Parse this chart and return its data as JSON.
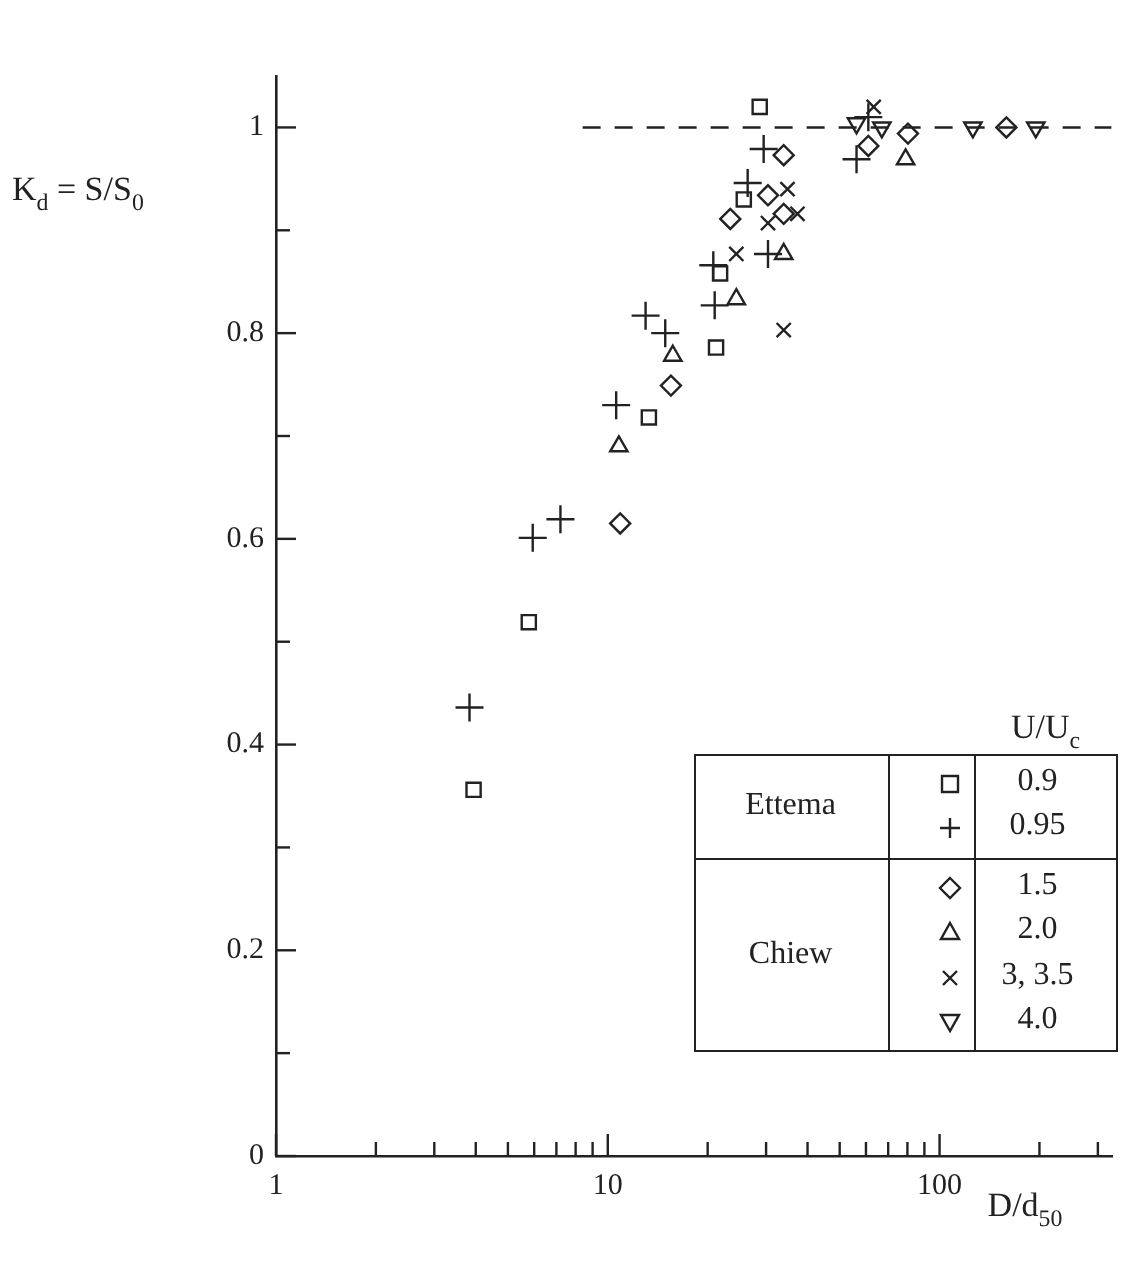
{
  "chart_data": {
    "type": "scatter",
    "xlabel": "D/d$_{50}$",
    "ylabel": "K$_{d}$ = S/S$_{0}$",
    "legend_title": "U/U$_{c}$",
    "legend": "bottom right",
    "log": "x",
    "grid": false,
    "annotations": [
      "Ettema",
      "Chiew"
    ],
    "xlim": [
      1,
      330
    ],
    "xticks": [
      1,
      {
        "value": 2,
        "label": null
      },
      {
        "value": 3,
        "label": null
      },
      {
        "value": 4,
        "label": null
      },
      {
        "value": 5,
        "label": null
      },
      {
        "value": 6,
        "label": null
      },
      {
        "value": 7,
        "label": null
      },
      {
        "value": 8,
        "label": null
      },
      {
        "value": 9,
        "label": null
      },
      10,
      {
        "value": 20,
        "label": null
      },
      {
        "value": 30,
        "label": null
      },
      {
        "value": 40,
        "label": null
      },
      {
        "value": 50,
        "label": null
      },
      {
        "value": 60,
        "label": null
      },
      {
        "value": 70,
        "label": null
      },
      {
        "value": 80,
        "label": null
      },
      {
        "value": 90,
        "label": null
      },
      100,
      {
        "value": 200,
        "label": null
      },
      {
        "value": 300,
        "label": null
      }
    ],
    "ylim": [
      0,
      1.05
    ],
    "yticks": [
      0,
      {
        "value": 0.1,
        "label": null
      },
      0.2,
      {
        "value": 0.3,
        "label": null
      },
      0.4,
      {
        "value": 0.5,
        "label": null
      },
      0.6,
      {
        "value": 0.7,
        "label": null
      },
      0.8,
      {
        "value": 0.9,
        "label": null
      },
      1
    ],
    "series": [
      {
        "type": "line",
        "color": "#222222",
        "line_style": "dashed",
        "marker": "none",
        "x": [
          8.4,
          330
        ],
        "values": [
          1,
          1
        ]
      },
      {
        "name": "0.9",
        "color": "#222222",
        "marker": "square",
        "x": [
          3.94,
          5.78,
          13.3,
          21.2,
          21.8,
          25.7,
          28.7
        ],
        "values": [
          0.356,
          0.519,
          0.718,
          0.786,
          0.858,
          0.93,
          1.02
        ]
      },
      {
        "name": "0.95",
        "color": "#222222",
        "marker": "cross",
        "x": [
          3.83,
          5.94,
          7.2,
          10.6,
          13.0,
          14.9,
          20.8,
          21.0,
          26.4,
          29.5,
          30.4,
          56.2,
          61
        ],
        "values": [
          0.436,
          0.601,
          0.619,
          0.73,
          0.817,
          0.8,
          0.866,
          0.827,
          0.946,
          0.979,
          0.877,
          0.969,
          1.01
        ]
      },
      {
        "name": "1.5",
        "color": "#222222",
        "marker": "diamond",
        "x": [
          10.9,
          15.5,
          23.4,
          30.4,
          33.9,
          33.9,
          61,
          80.3,
          159
        ],
        "values": [
          0.615,
          0.749,
          0.911,
          0.934,
          0.973,
          0.916,
          0.982,
          0.994,
          1.0
        ]
      },
      {
        "name": "2.0",
        "color": "#222222",
        "marker": "triangle",
        "x": [
          10.8,
          15.7,
          24.4,
          33.9,
          79
        ],
        "values": [
          0.69,
          0.778,
          0.833,
          0.877,
          0.969
        ]
      },
      {
        "name": "3, 3.5",
        "color": "#222222",
        "marker": "x",
        "x": [
          24.4,
          33.9,
          30.4,
          37.3,
          34.8,
          63.3
        ],
        "values": [
          0.877,
          0.803,
          0.907,
          0.916,
          0.94,
          1.02
        ]
      },
      {
        "name": "4.0",
        "color": "#222222",
        "marker": "triangle-down",
        "x": [
          56.2,
          67,
          126,
          195
        ],
        "values": [
          1.004,
          1.0,
          1.0,
          1.0
        ]
      }
    ]
  }
}
